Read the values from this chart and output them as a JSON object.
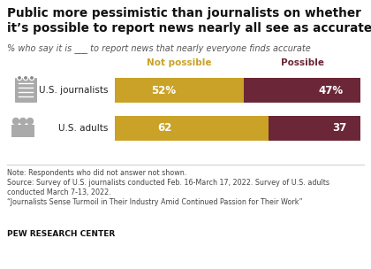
{
  "title": "Public more pessimistic than journalists on whether\nit’s possible to report news nearly all see as accurate",
  "subtitle": "% who say it is ___ to report news that nearly everyone finds accurate",
  "categories": [
    "U.S. journalists",
    "U.S. adults"
  ],
  "not_possible": [
    52,
    62
  ],
  "possible": [
    47,
    37
  ],
  "labels_not_possible": [
    "52%",
    "62"
  ],
  "labels_possible": [
    "47%",
    "37"
  ],
  "color_not_possible": "#C9A227",
  "color_possible": "#6B2737",
  "legend_not_possible": "Not possible",
  "legend_possible": "Possible",
  "note_line1": "Note: Respondents who did not answer not shown.",
  "note_line2": "Source: Survey of U.S. journalists conducted Feb. 16-March 17, 2022. Survey of U.S. adults",
  "note_line3": "conducted March 7-13, 2022.",
  "note_line4": "“Journalists Sense Turmoil in Their Industry Amid Continued Passion for Their Work”",
  "source_label": "PEW RESEARCH CENTER",
  "bg_color": "#ffffff",
  "icon_color": "#aaaaaa"
}
